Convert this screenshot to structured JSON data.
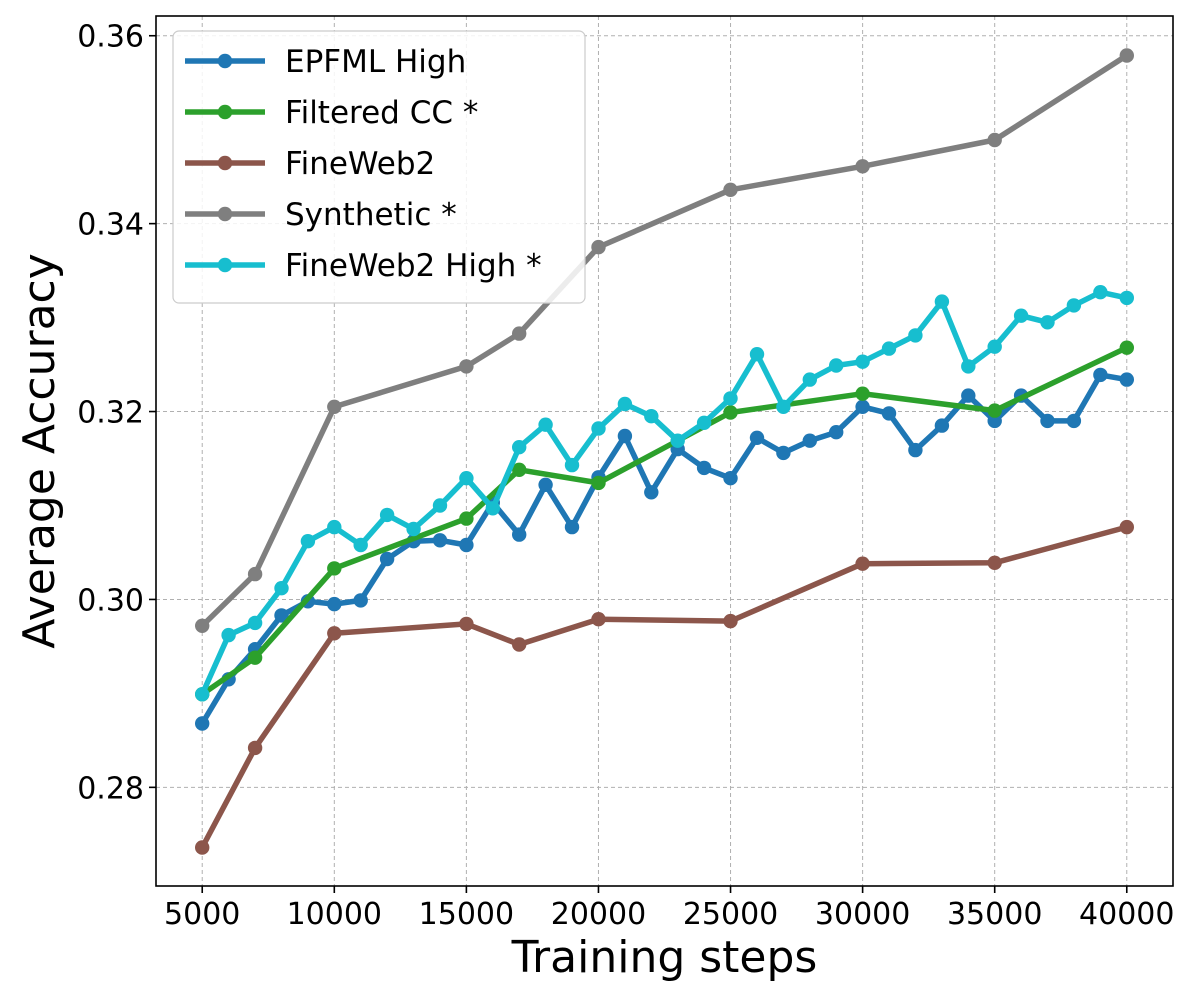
{
  "chart_data": {
    "type": "line",
    "title": "",
    "xlabel": "Training steps",
    "ylabel": "Average Accuracy",
    "xlim": [
      3250,
      41750
    ],
    "ylim": [
      0.2695,
      0.3621
    ],
    "xticks": [
      5000,
      10000,
      15000,
      20000,
      25000,
      30000,
      35000,
      40000
    ],
    "yticks": [
      0.28,
      0.3,
      0.32,
      0.34,
      0.36
    ],
    "ytick_labels": [
      "0.28",
      "0.30",
      "0.32",
      "0.34",
      "0.36"
    ],
    "grid": true,
    "legend_position": "top-left",
    "series": [
      {
        "name": "EPFML High",
        "color": "#1f77b4",
        "x": [
          5000,
          6000,
          7000,
          8000,
          9000,
          10000,
          11000,
          12000,
          13000,
          14000,
          15000,
          16000,
          17000,
          18000,
          19000,
          20000,
          21000,
          22000,
          23000,
          24000,
          25000,
          26000,
          27000,
          28000,
          29000,
          30000,
          31000,
          32000,
          33000,
          34000,
          35000,
          36000,
          37000,
          38000,
          39000,
          40000
        ],
        "values": [
          0.2868,
          0.2915,
          0.2947,
          0.2983,
          0.2998,
          0.2995,
          0.2999,
          0.3043,
          0.3062,
          0.3063,
          0.3058,
          0.3103,
          0.3069,
          0.3122,
          0.3077,
          0.313,
          0.3174,
          0.3114,
          0.316,
          0.314,
          0.3129,
          0.3172,
          0.3156,
          0.3169,
          0.3178,
          0.3205,
          0.3198,
          0.3159,
          0.3185,
          0.3217,
          0.319,
          0.3217,
          0.319,
          0.319,
          0.3239,
          0.3234
        ]
      },
      {
        "name": "Filtered CC *",
        "color": "#2ca02c",
        "x": [
          5000,
          7000,
          10000,
          15000,
          17000,
          20000,
          25000,
          30000,
          35000,
          40000
        ],
        "values": [
          0.2899,
          0.2938,
          0.3033,
          0.3086,
          0.3138,
          0.3124,
          0.3199,
          0.3219,
          0.3201,
          0.3268
        ]
      },
      {
        "name": "FineWeb2",
        "color": "#8c564b",
        "x": [
          5000,
          7000,
          10000,
          15000,
          17000,
          20000,
          25000,
          30000,
          35000,
          40000
        ],
        "values": [
          0.2736,
          0.2842,
          0.2964,
          0.2974,
          0.2952,
          0.2979,
          0.2977,
          0.3038,
          0.3039,
          0.3077
        ]
      },
      {
        "name": "Synthetic *",
        "color": "#7f7f7f",
        "x": [
          5000,
          7000,
          10000,
          15000,
          17000,
          20000,
          25000,
          30000,
          35000,
          40000
        ],
        "values": [
          0.2972,
          0.3027,
          0.3205,
          0.3248,
          0.3283,
          0.3375,
          0.3436,
          0.3461,
          0.3489,
          0.3579
        ]
      },
      {
        "name": "FineWeb2 High *",
        "color": "#17becf",
        "x": [
          5000,
          6000,
          7000,
          8000,
          9000,
          10000,
          11000,
          12000,
          13000,
          14000,
          15000,
          16000,
          17000,
          18000,
          19000,
          20000,
          21000,
          22000,
          23000,
          24000,
          25000,
          26000,
          27000,
          28000,
          29000,
          30000,
          31000,
          32000,
          33000,
          34000,
          35000,
          36000,
          37000,
          38000,
          39000,
          40000
        ],
        "values": [
          0.2899,
          0.2962,
          0.2975,
          0.3012,
          0.3062,
          0.3077,
          0.3058,
          0.309,
          0.3075,
          0.31,
          0.3129,
          0.3097,
          0.3162,
          0.3186,
          0.3143,
          0.3182,
          0.3208,
          0.3195,
          0.3169,
          0.3188,
          0.3214,
          0.3261,
          0.3205,
          0.3234,
          0.3249,
          0.3253,
          0.3267,
          0.3281,
          0.3317,
          0.3248,
          0.3269,
          0.3302,
          0.3295,
          0.3313,
          0.3327,
          0.3321
        ]
      }
    ]
  }
}
